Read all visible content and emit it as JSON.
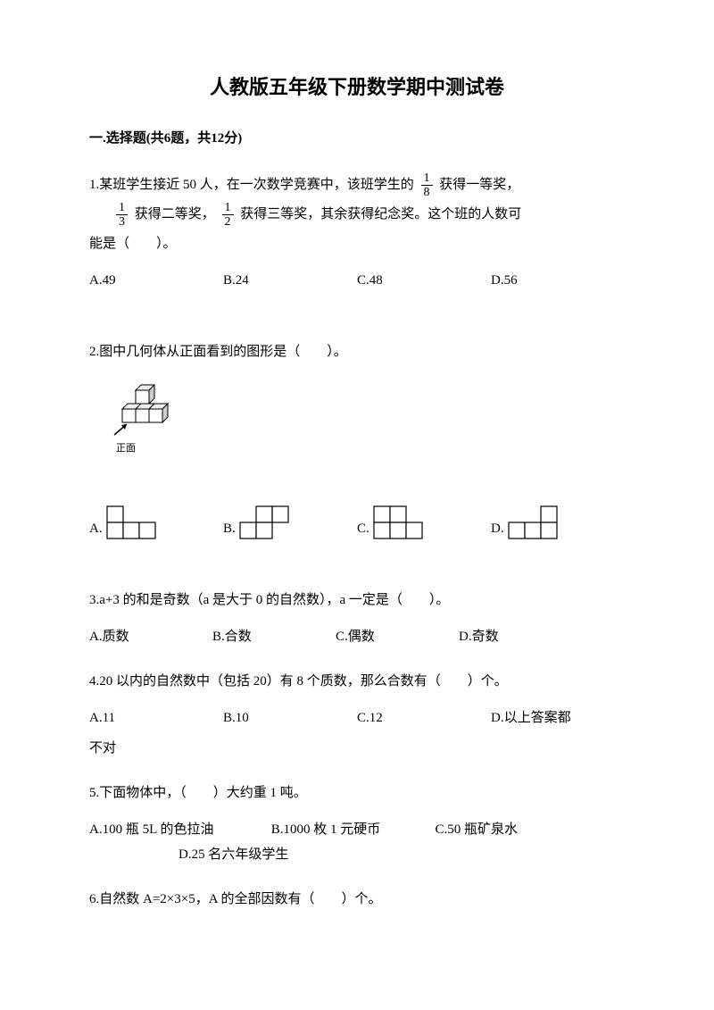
{
  "title": "人教版五年级下册数学期中测试卷",
  "section": "一.选择题(共6题，共12分)",
  "q1": {
    "text_part1": "1.某班学生接近 50 人，在一次数学竞赛中，该班学生的",
    "frac1_num": "1",
    "frac1_den": "8",
    "text_part2": "获得一等奖，",
    "frac2_num": "1",
    "frac2_den": "3",
    "text_part3": "获得二等奖，",
    "frac3_num": "1",
    "frac3_den": "2",
    "text_part4": "获得三等奖，其余获得纪念奖。这个班的人数可",
    "text_part5": "能是（　　）。",
    "optA": "A.49",
    "optB": "B.24",
    "optC": "C.48",
    "optD": "D.56"
  },
  "q2": {
    "text": "2.图中几何体从正面看到的图形是（　　）。",
    "front_label": "正面",
    "optA": "A.",
    "optB": "B.",
    "optC": "C.",
    "optD": "D.",
    "shapes": {
      "A": {
        "grid": [
          [
            1,
            0,
            0
          ],
          [
            1,
            1,
            1
          ]
        ],
        "cell": 18
      },
      "B": {
        "grid": [
          [
            0,
            1,
            1
          ],
          [
            1,
            1,
            0
          ]
        ],
        "cell": 18
      },
      "C": {
        "grid": [
          [
            1,
            1,
            0
          ],
          [
            1,
            1,
            1
          ]
        ],
        "cell": 18
      },
      "D": {
        "grid": [
          [
            0,
            0,
            1
          ],
          [
            1,
            1,
            1
          ]
        ],
        "cell": 18
      }
    }
  },
  "q3": {
    "text": "3.a+3 的和是奇数（a 是大于 0 的自然数），a 一定是（　　）。",
    "optA": "A.质数",
    "optB": "B.合数",
    "optC": "C.偶数",
    "optD": "D.奇数"
  },
  "q4": {
    "text": "4.20 以内的自然数中（包括 20）有 8 个质数，那么合数有（　　）个。",
    "optA": "A.11",
    "optB": "B.10",
    "optC": "C.12",
    "optD": "D.以上答案都",
    "optD2": "不对"
  },
  "q5": {
    "text": "5.下面物体中，（　　）大约重 1 吨。",
    "optA": "A.100 瓶 5L 的色拉油",
    "optB": "B.1000 枚 1 元硬币",
    "optC": "C.50 瓶矿泉水",
    "optD": "D.25 名六年级学生"
  },
  "q6": {
    "text": "6.自然数 A=2×3×5，A 的全部因数有（　　）个。"
  },
  "colors": {
    "text": "#000000",
    "background": "#ffffff",
    "line": "#000000"
  }
}
